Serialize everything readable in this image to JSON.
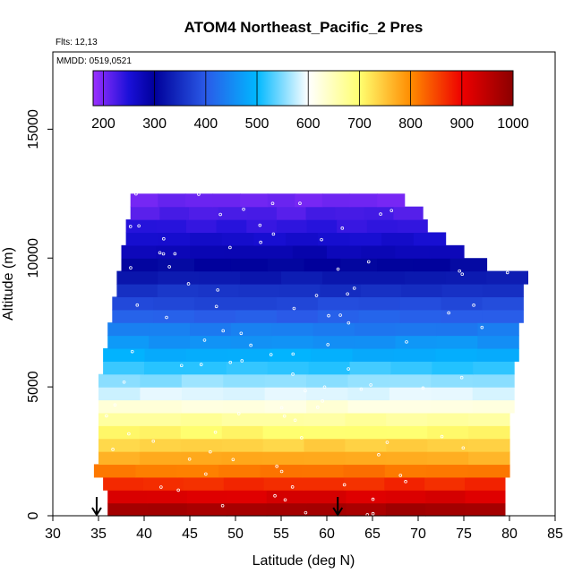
{
  "chart_data": {
    "type": "heatmap",
    "title": "ATOM4 Northeast_Pacific_2 Pres",
    "annotations": {
      "flights": "Flts: 12,13",
      "dates": "MMDD: 0519,0521"
    },
    "xlabel": "Latitude (deg N)",
    "ylabel": "Altitude (m)",
    "xlim": [
      30,
      85
    ],
    "ylim": [
      0,
      18000
    ],
    "x_ticks": [
      30,
      35,
      40,
      45,
      50,
      55,
      60,
      65,
      70,
      75,
      80,
      85
    ],
    "y_ticks": [
      0,
      5000,
      10000,
      15000
    ],
    "grid": false,
    "colorbar": {
      "placement": "top",
      "min": 180,
      "max": 1000,
      "ticks": [
        200,
        300,
        400,
        500,
        600,
        700,
        800,
        900,
        1000
      ],
      "stops": [
        {
          "value": 180,
          "color": "#9b30ff"
        },
        {
          "value": 250,
          "color": "#1a10d8"
        },
        {
          "value": 300,
          "color": "#00009a"
        },
        {
          "value": 400,
          "color": "#2a5ae8"
        },
        {
          "value": 500,
          "color": "#00b8ff"
        },
        {
          "value": 600,
          "color": "#ffffff"
        },
        {
          "value": 700,
          "color": "#ffff70"
        },
        {
          "value": 800,
          "color": "#ff8c00"
        },
        {
          "value": 900,
          "color": "#ee0000"
        },
        {
          "value": 1000,
          "color": "#8b0000"
        }
      ]
    },
    "bands": [
      {
        "alt_lo": 0,
        "alt_hi": 500,
        "lat_min": 36.0,
        "lat_max": 79.5,
        "value": 975
      },
      {
        "alt_lo": 500,
        "alt_hi": 1000,
        "lat_min": 36.0,
        "lat_max": 79.5,
        "value": 920
      },
      {
        "alt_lo": 1000,
        "alt_hi": 1500,
        "lat_min": 35.5,
        "lat_max": 79.5,
        "value": 870
      },
      {
        "alt_lo": 1500,
        "alt_hi": 2000,
        "lat_min": 34.5,
        "lat_max": 80.0,
        "value": 815
      },
      {
        "alt_lo": 2000,
        "alt_hi": 2500,
        "lat_min": 35.0,
        "lat_max": 80.0,
        "value": 770
      },
      {
        "alt_lo": 2500,
        "alt_hi": 3000,
        "lat_min": 35.0,
        "lat_max": 80.0,
        "value": 740
      },
      {
        "alt_lo": 3000,
        "alt_hi": 3500,
        "lat_min": 35.0,
        "lat_max": 80.0,
        "value": 705
      },
      {
        "alt_lo": 3500,
        "alt_hi": 4000,
        "lat_min": 35.0,
        "lat_max": 80.0,
        "value": 670
      },
      {
        "alt_lo": 4000,
        "alt_hi": 4500,
        "lat_min": 35.0,
        "lat_max": 80.5,
        "value": 625
      },
      {
        "alt_lo": 4500,
        "alt_hi": 5000,
        "lat_min": 35.0,
        "lat_max": 80.5,
        "value": 585
      },
      {
        "alt_lo": 5000,
        "alt_hi": 5500,
        "lat_min": 35.0,
        "lat_max": 80.5,
        "value": 555
      },
      {
        "alt_lo": 5500,
        "alt_hi": 6000,
        "lat_min": 35.5,
        "lat_max": 80.5,
        "value": 520
      },
      {
        "alt_lo": 6000,
        "alt_hi": 6500,
        "lat_min": 35.5,
        "lat_max": 81.0,
        "value": 490
      },
      {
        "alt_lo": 6500,
        "alt_hi": 7000,
        "lat_min": 36.0,
        "lat_max": 81.0,
        "value": 462
      },
      {
        "alt_lo": 7000,
        "alt_hi": 7500,
        "lat_min": 36.0,
        "lat_max": 81.0,
        "value": 435
      },
      {
        "alt_lo": 7500,
        "alt_hi": 8000,
        "lat_min": 36.5,
        "lat_max": 81.5,
        "value": 405
      },
      {
        "alt_lo": 8000,
        "alt_hi": 8500,
        "lat_min": 36.5,
        "lat_max": 81.5,
        "value": 380
      },
      {
        "alt_lo": 8500,
        "alt_hi": 9000,
        "lat_min": 37.0,
        "lat_max": 81.5,
        "value": 355
      },
      {
        "alt_lo": 9000,
        "alt_hi": 9500,
        "lat_min": 37.0,
        "lat_max": 82.0,
        "value": 330
      },
      {
        "alt_lo": 9500,
        "alt_hi": 10000,
        "lat_min": 37.5,
        "lat_max": 77.5,
        "value": 305
      },
      {
        "alt_lo": 10000,
        "alt_hi": 10500,
        "lat_min": 37.5,
        "lat_max": 75.0,
        "value": 280
      },
      {
        "alt_lo": 10500,
        "alt_hi": 11000,
        "lat_min": 38.0,
        "lat_max": 73.0,
        "value": 258
      },
      {
        "alt_lo": 11000,
        "alt_hi": 11500,
        "lat_min": 38.0,
        "lat_max": 71.0,
        "value": 240
      },
      {
        "alt_lo": 11500,
        "alt_hi": 12000,
        "lat_min": 38.5,
        "lat_max": 70.5,
        "value": 222
      },
      {
        "alt_lo": 12000,
        "alt_hi": 12500,
        "lat_min": 38.5,
        "lat_max": 68.5,
        "value": 205
      }
    ],
    "markers": [
      {
        "lat": 34.8,
        "label": "arrow"
      },
      {
        "lat": 61.2,
        "label": "arrow"
      }
    ]
  }
}
